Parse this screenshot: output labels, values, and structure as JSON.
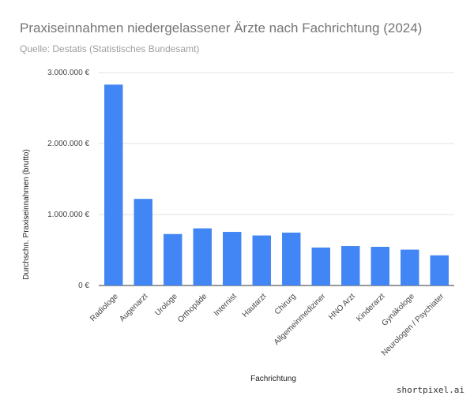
{
  "header": {
    "title": "Praxiseinnahmen niedergelassener Ärzte nach Fachrichtung (2024)",
    "subtitle": "Quelle: Destatis (Statistisches Bundesamt)"
  },
  "watermark": "shortpixel.ai",
  "colors": {
    "bar": "#4285f4",
    "grid": "#e0e0e0",
    "baseline": "#333333"
  },
  "chart_data": {
    "type": "bar",
    "title": "Praxiseinnahmen niedergelassener Ärzte nach Fachrichtung (2024)",
    "xlabel": "Fachrichtung",
    "ylabel": "Durchschn. Praxiseinnahmen (brutto)",
    "ylim": [
      0,
      3000000
    ],
    "y_ticks": [
      {
        "value": 0,
        "label": "0 €"
      },
      {
        "value": 1000000,
        "label": "1.000.000 €"
      },
      {
        "value": 2000000,
        "label": "2.000.000 €"
      },
      {
        "value": 3000000,
        "label": "3.000.000 €"
      }
    ],
    "categories": [
      "Radiologe",
      "Augenarzt",
      "Urologe",
      "Orthopäde",
      "Internist",
      "Hautarzt",
      "Chirurg",
      "Allgemeinmediziner",
      "HNO Arzt",
      "Kinderarzt",
      "Gynäkologe",
      "Neurologen / Psychiater"
    ],
    "values": [
      2830000,
      1220000,
      725000,
      805000,
      755000,
      705000,
      745000,
      535000,
      555000,
      545000,
      505000,
      425000
    ],
    "grid": true,
    "legend": "none"
  }
}
